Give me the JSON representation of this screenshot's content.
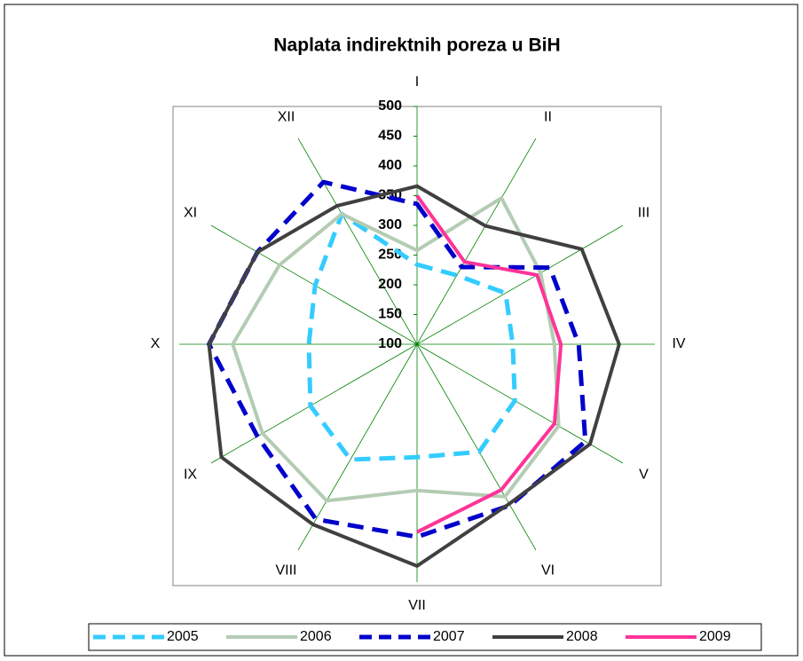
{
  "chart_data": {
    "type": "radar",
    "title": "Naplata indirektnih poreza u BiH",
    "categories": [
      "I",
      "II",
      "III",
      "IV",
      "V",
      "VI",
      "VII",
      "VIII",
      "IX",
      "X",
      "XI",
      "XII"
    ],
    "ylim": [
      100,
      500
    ],
    "yticks": [
      100,
      150,
      200,
      250,
      300,
      350,
      400,
      450,
      500
    ],
    "grid": true,
    "legend": "bottom",
    "series": [
      {
        "name": "2005",
        "color": "#33ccff",
        "dash": "dashed",
        "values": [
          234,
          234,
          272,
          261,
          290,
          309,
          290,
          324,
          307,
          282,
          298,
          353
        ]
      },
      {
        "name": "2006",
        "color": "#b3ccb3",
        "dash": "solid",
        "values": [
          258,
          384,
          340,
          331,
          375,
          396,
          346,
          404,
          400,
          410,
          367,
          353
        ]
      },
      {
        "name": "2007",
        "color": "#0000cc",
        "dash": "dashed",
        "values": [
          336,
          250,
          358,
          372,
          427,
          413,
          424,
          440,
          410,
          450,
          410,
          415
        ]
      },
      {
        "name": "2008",
        "color": "#404040",
        "dash": "solid",
        "values": [
          366,
          330,
          420,
          440,
          436,
          410,
          473,
          450,
          480,
          450,
          410,
          369
        ]
      },
      {
        "name": "2009",
        "color": "#ff3399",
        "dash": "solid",
        "values": [
          350,
          260,
          333,
          342,
          367,
          383,
          416,
          null,
          null,
          null,
          null,
          null
        ]
      }
    ]
  }
}
